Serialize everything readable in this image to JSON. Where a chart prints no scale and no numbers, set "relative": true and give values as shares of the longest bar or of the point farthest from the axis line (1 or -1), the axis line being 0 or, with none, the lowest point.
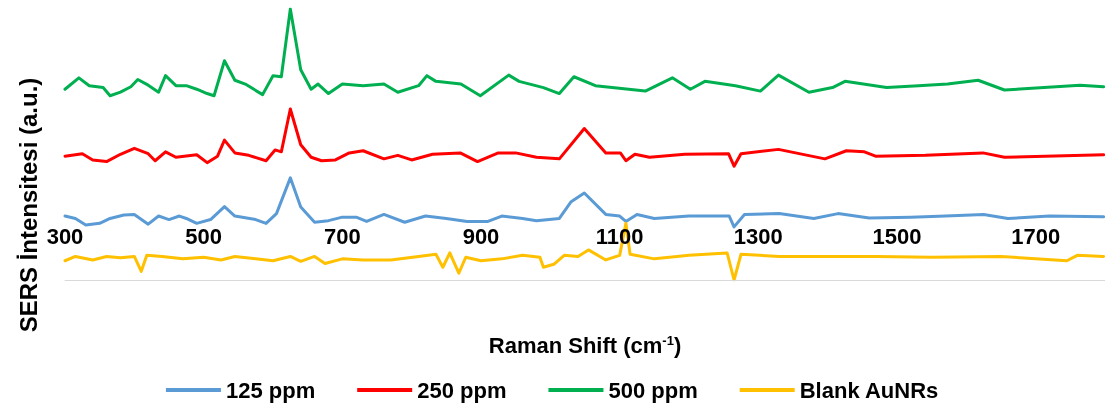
{
  "chart_data": {
    "type": "line",
    "relative": true,
    "xlabel": "Raman Shift (cm$^{-1}$)",
    "ylabel": "SERS İntensitesi (a.u.)",
    "xlim": [
      300,
      1800
    ],
    "xticks": [
      300,
      500,
      700,
      900,
      1100,
      1300,
      1500,
      1700
    ],
    "legend": "bottom",
    "line_style": "solid",
    "grid": false,
    "series": [
      {
        "name": "125 ppm",
        "color": "#5b9bd5",
        "x": [
          300,
          315,
          330,
          350,
          365,
          385,
          400,
          420,
          435,
          450,
          465,
          475,
          490,
          510,
          530,
          545,
          575,
          590,
          605,
          625,
          640,
          660,
          680,
          700,
          720,
          735,
          760,
          790,
          820,
          850,
          880,
          910,
          930,
          960,
          980,
          1013,
          1030,
          1049,
          1080,
          1100,
          1109,
          1125,
          1150,
          1200,
          1258,
          1265,
          1280,
          1330,
          1380,
          1415,
          1460,
          1520,
          1570,
          1625,
          1660,
          1720,
          1798
        ],
        "values": [
          0.236,
          0.227,
          0.203,
          0.209,
          0.227,
          0.24,
          0.242,
          0.206,
          0.236,
          0.223,
          0.236,
          0.227,
          0.209,
          0.223,
          0.271,
          0.236,
          0.223,
          0.209,
          0.245,
          0.377,
          0.269,
          0.213,
          0.219,
          0.232,
          0.232,
          0.216,
          0.242,
          0.213,
          0.236,
          0.227,
          0.216,
          0.216,
          0.236,
          0.227,
          0.219,
          0.227,
          0.289,
          0.321,
          0.242,
          0.236,
          0.216,
          0.242,
          0.227,
          0.236,
          0.236,
          0.196,
          0.242,
          0.245,
          0.227,
          0.245,
          0.229,
          0.232,
          0.236,
          0.242,
          0.227,
          0.236,
          0.233
        ]
      },
      {
        "name": "250 ppm",
        "color": "#ff0000",
        "x": [
          300,
          325,
          340,
          360,
          380,
          400,
          420,
          430,
          445,
          460,
          490,
          505,
          520,
          530,
          545,
          565,
          590,
          603,
          612,
          625,
          640,
          655,
          670,
          690,
          710,
          730,
          760,
          780,
          800,
          830,
          870,
          895,
          925,
          950,
          980,
          1013,
          1049,
          1080,
          1101,
          1109,
          1122,
          1143,
          1194,
          1257,
          1265,
          1275,
          1329,
          1396,
          1427,
          1453,
          1469,
          1541,
          1624,
          1655,
          1798
        ],
        "values": [
          0.457,
          0.466,
          0.443,
          0.437,
          0.464,
          0.486,
          0.466,
          0.44,
          0.473,
          0.453,
          0.462,
          0.433,
          0.457,
          0.516,
          0.469,
          0.46,
          0.44,
          0.48,
          0.473,
          0.631,
          0.499,
          0.453,
          0.44,
          0.443,
          0.469,
          0.477,
          0.447,
          0.46,
          0.443,
          0.464,
          0.469,
          0.437,
          0.469,
          0.469,
          0.453,
          0.447,
          0.559,
          0.469,
          0.469,
          0.44,
          0.464,
          0.453,
          0.464,
          0.466,
          0.42,
          0.466,
          0.482,
          0.447,
          0.477,
          0.473,
          0.457,
          0.46,
          0.469,
          0.453,
          0.462
        ]
      },
      {
        "name": "500 ppm",
        "color": "#00b050",
        "x": [
          300,
          320,
          335,
          355,
          365,
          380,
          395,
          405,
          420,
          435,
          445,
          460,
          475,
          490,
          505,
          515,
          530,
          545,
          560,
          585,
          600,
          612,
          625,
          640,
          655,
          665,
          680,
          700,
          730,
          760,
          780,
          810,
          822,
          835,
          871,
          899,
          940,
          955,
          990,
          1013,
          1034,
          1065,
          1137,
          1176,
          1202,
          1223,
          1267,
          1303,
          1329,
          1373,
          1407,
          1425,
          1485,
          1531,
          1573,
          1617,
          1655,
          1764,
          1798
        ],
        "values": [
          0.704,
          0.746,
          0.717,
          0.71,
          0.68,
          0.693,
          0.713,
          0.74,
          0.719,
          0.693,
          0.754,
          0.717,
          0.717,
          0.704,
          0.688,
          0.68,
          0.809,
          0.737,
          0.723,
          0.684,
          0.754,
          0.75,
          1.0,
          0.776,
          0.704,
          0.723,
          0.688,
          0.723,
          0.717,
          0.723,
          0.693,
          0.717,
          0.754,
          0.733,
          0.723,
          0.68,
          0.756,
          0.733,
          0.71,
          0.688,
          0.75,
          0.717,
          0.697,
          0.746,
          0.704,
          0.733,
          0.717,
          0.697,
          0.756,
          0.693,
          0.71,
          0.733,
          0.71,
          0.717,
          0.723,
          0.737,
          0.701,
          0.719,
          0.713
        ]
      },
      {
        "name": "Blank AuNRs",
        "color": "#ffc000",
        "x": [
          300,
          315,
          340,
          360,
          380,
          400,
          410,
          418,
          440,
          470,
          500,
          525,
          545,
          575,
          600,
          625,
          640,
          660,
          675,
          700,
          730,
          770,
          810,
          835,
          845,
          855,
          868,
          878,
          900,
          930,
          960,
          985,
          990,
          1005,
          1020,
          1040,
          1055,
          1080,
          1100,
          1109,
          1115,
          1150,
          1200,
          1255,
          1265,
          1275,
          1330,
          1400,
          1470,
          1550,
          1650,
          1745,
          1760,
          1798
        ],
        "values": [
          0.071,
          0.087,
          0.074,
          0.087,
          0.082,
          0.087,
          0.032,
          0.091,
          0.087,
          0.078,
          0.084,
          0.074,
          0.087,
          0.078,
          0.071,
          0.087,
          0.069,
          0.087,
          0.061,
          0.078,
          0.074,
          0.074,
          0.087,
          0.095,
          0.047,
          0.1,
          0.025,
          0.084,
          0.071,
          0.078,
          0.091,
          0.084,
          0.047,
          0.058,
          0.091,
          0.087,
          0.111,
          0.074,
          0.091,
          0.209,
          0.095,
          0.078,
          0.091,
          0.1,
          0.0,
          0.095,
          0.087,
          0.087,
          0.087,
          0.084,
          0.087,
          0.071,
          0.091,
          0.087
        ]
      }
    ]
  }
}
